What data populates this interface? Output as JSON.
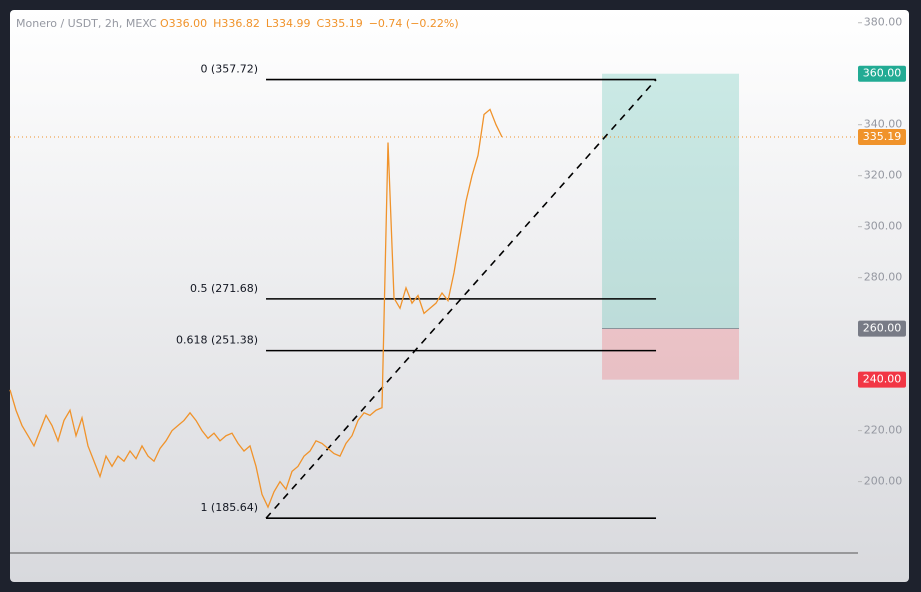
{
  "chart_data": {
    "type": "line",
    "symbol": "Monero / USDT, 2h, MEXC",
    "ohlc": [
      "O336.00",
      "H336.82",
      "L334.99",
      "C335.19",
      "−0.74 (−0.22%)"
    ],
    "series": [
      {
        "name": "XMR/USDT",
        "color": "#f0932b",
        "values": [
          236,
          228,
          222,
          218,
          214,
          220,
          226,
          222,
          216,
          224,
          228,
          218,
          225,
          214,
          208,
          202,
          210,
          206,
          210,
          208,
          212,
          209,
          214,
          210,
          208,
          213,
          216,
          220,
          222,
          224,
          227,
          224,
          220,
          217,
          219,
          216,
          218,
          219,
          215,
          212,
          214,
          206,
          195,
          190,
          196,
          200,
          197,
          204,
          206,
          210,
          212,
          216,
          215,
          213,
          211,
          210,
          215,
          218,
          224,
          227,
          226,
          228,
          229,
          333,
          272,
          268,
          276,
          270,
          273,
          266,
          268,
          270,
          274,
          271,
          282,
          296,
          310,
          320,
          328,
          344,
          346,
          340,
          335.19
        ]
      }
    ],
    "xlim": [
      0,
      141.33
    ],
    "ylim": [
      172,
      385
    ],
    "yticks": [
      {
        "value": 200,
        "label": "200.00"
      },
      {
        "value": 220,
        "label": "220.00"
      },
      {
        "value": 240,
        "label": "240.00"
      },
      {
        "value": 260,
        "label": "260.00"
      },
      {
        "value": 280,
        "label": "280.00"
      },
      {
        "value": 300,
        "label": "300.00"
      },
      {
        "value": 320,
        "label": "320.00"
      },
      {
        "value": 340,
        "label": "340.00"
      },
      {
        "value": 360,
        "label": "360.00"
      },
      {
        "value": 380,
        "label": "380.00"
      }
    ],
    "fib": {
      "start_x": 42.67,
      "end_x": 107.67,
      "levels": [
        {
          "label": "0 (357.72)",
          "value": 357.72
        },
        {
          "label": "0.5 (271.68)",
          "value": 271.68
        },
        {
          "label": "0.618 (251.38)",
          "value": 251.38
        },
        {
          "label": "1 (185.64)",
          "value": 185.64
        }
      ]
    },
    "position": {
      "start_x": 98.67,
      "end_x": 121.5,
      "target": {
        "value": 360,
        "label": "360.00",
        "color": "#22ab94"
      },
      "entry": {
        "value": 260,
        "label": "260.00",
        "color": "#787b86"
      },
      "stop": {
        "value": 240,
        "label": "240.00",
        "color": "#f23645"
      }
    }
  }
}
